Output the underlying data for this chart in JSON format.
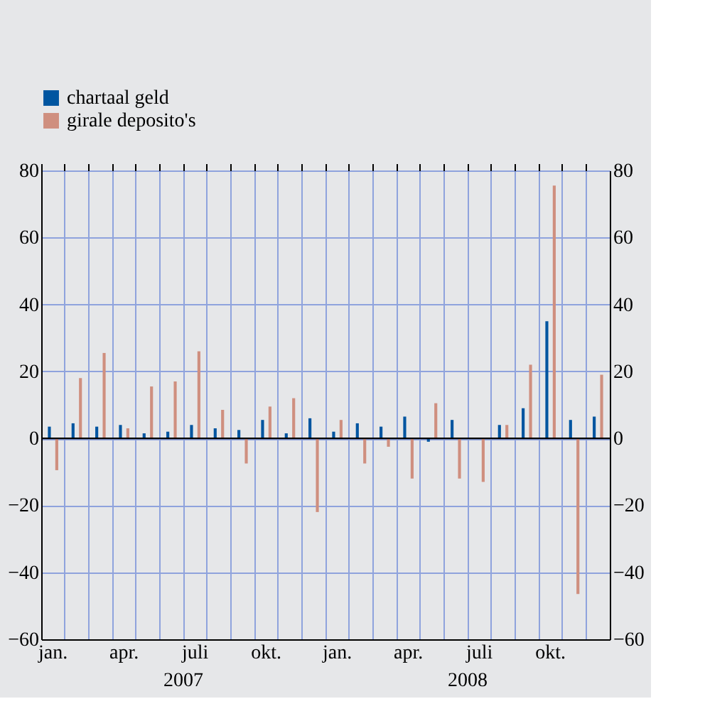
{
  "chart_data": {
    "type": "bar",
    "categories": [
      "jan.",
      null,
      null,
      "apr.",
      null,
      null,
      "juli",
      null,
      null,
      "okt.",
      null,
      null,
      "jan.",
      null,
      null,
      "apr.",
      null,
      null,
      "juli",
      null,
      null,
      "okt.",
      null,
      null
    ],
    "series": [
      {
        "name": "chartaal geld",
        "color": "#0055a0",
        "values": [
          3.5,
          4.5,
          3.5,
          4,
          1.5,
          2,
          4,
          3,
          2.5,
          5.5,
          1.5,
          6,
          2,
          4.5,
          3.5,
          6.5,
          -1,
          5.5,
          0,
          4,
          9,
          35,
          5.5,
          6.5
        ]
      },
      {
        "name": "girale deposito's",
        "color": "#cf8f7f",
        "values": [
          -9.5,
          18,
          25.5,
          3,
          15.5,
          17,
          26,
          8.5,
          -7.5,
          9.5,
          12,
          -22,
          5.5,
          -7.5,
          -2.5,
          -12,
          10.5,
          -12,
          -13,
          4,
          22,
          75.5,
          -46.5,
          19
        ]
      }
    ],
    "ylim": [
      -60,
      80
    ],
    "yticks": [
      -60,
      -40,
      -20,
      0,
      20,
      40,
      60,
      80
    ],
    "y2lim": [
      -60,
      80
    ],
    "y2ticks": [
      -60,
      -40,
      -20,
      0,
      20,
      40,
      60,
      80
    ],
    "ref_lines": [
      {
        "axis": "y",
        "value": 0,
        "color": "#000000"
      }
    ],
    "annotations": [
      "2007",
      "2008"
    ],
    "grid": true,
    "legend": "top left"
  }
}
